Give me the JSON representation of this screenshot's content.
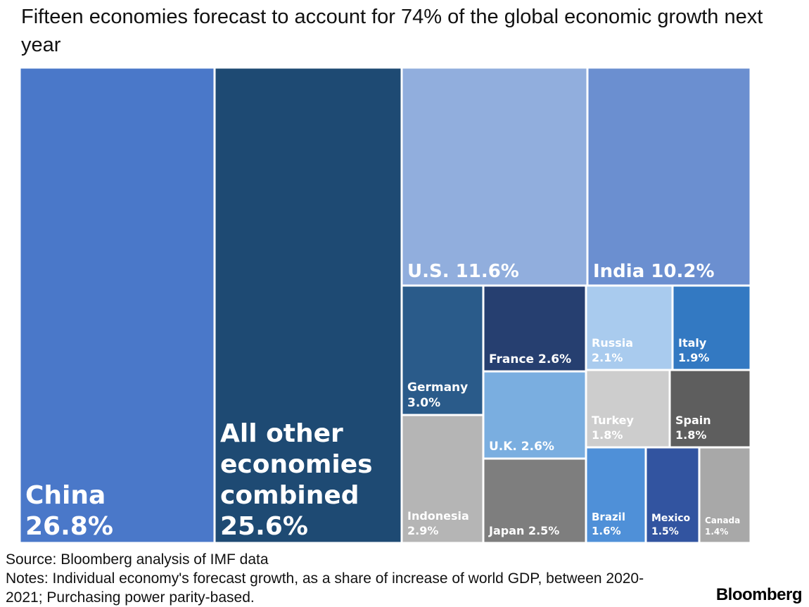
{
  "title": "Fifteen economies forecast to account for 74% of the global economic growth next year",
  "source": "Source: Bloomberg analysis of IMF data",
  "notes": "Notes: Individual economy's forecast growth, as a share of increase of world GDP, between 2020-2021; Purchasing power parity-based.",
  "brand": "Bloomberg",
  "chart_data": {
    "type": "treemap",
    "title": "Fifteen economies forecast to account for 74% of the global economic growth next year",
    "unit": "%",
    "items": [
      {
        "name": "China",
        "value": 26.8,
        "label_lines": [
          "China",
          "26.8%"
        ],
        "color": "#4a78c9"
      },
      {
        "name": "All other economies combined",
        "value": 25.6,
        "label_lines": [
          "All other",
          "economies",
          "combined",
          "25.6%"
        ],
        "color": "#1e4a73"
      },
      {
        "name": "U.S.",
        "value": 11.6,
        "label_lines": [
          "U.S. 11.6%"
        ],
        "color": "#91aedd"
      },
      {
        "name": "India",
        "value": 10.2,
        "label_lines": [
          "India 10.2%"
        ],
        "color": "#6b8fd0"
      },
      {
        "name": "Germany",
        "value": 3.0,
        "label_lines": [
          "Germany",
          "3.0%"
        ],
        "color": "#2a5b8a"
      },
      {
        "name": "France",
        "value": 2.6,
        "label_lines": [
          "France 2.6%"
        ],
        "color": "#263f70"
      },
      {
        "name": "Russia",
        "value": 2.1,
        "label_lines": [
          "Russia",
          "2.1%"
        ],
        "color": "#a9cbee"
      },
      {
        "name": "Italy",
        "value": 1.9,
        "label_lines": [
          "Italy",
          "1.9%"
        ],
        "color": "#3379c2"
      },
      {
        "name": "U.K.",
        "value": 2.6,
        "label_lines": [
          "U.K. 2.6%"
        ],
        "color": "#7aaee0"
      },
      {
        "name": "Turkey",
        "value": 1.8,
        "label_lines": [
          "Turkey",
          "1.8%"
        ],
        "color": "#cdcdcd"
      },
      {
        "name": "Spain",
        "value": 1.8,
        "label_lines": [
          "Spain",
          "1.8%"
        ],
        "color": "#5e5e5e"
      },
      {
        "name": "Indonesia",
        "value": 2.9,
        "label_lines": [
          "Indonesia",
          "2.9%"
        ],
        "color": "#b5b5b5"
      },
      {
        "name": "Japan",
        "value": 2.5,
        "label_lines": [
          "Japan 2.5%"
        ],
        "color": "#7e7e7e"
      },
      {
        "name": "Brazil",
        "value": 1.6,
        "label_lines": [
          "Brazil",
          "1.6%"
        ],
        "color": "#4f90d8"
      },
      {
        "name": "Mexico",
        "value": 1.5,
        "label_lines": [
          "Mexico",
          "1.5%"
        ],
        "color": "#3254a0"
      },
      {
        "name": "Canada",
        "value": 1.4,
        "label_lines": [
          "Canada",
          "1.4%"
        ],
        "color": "#a8a8a8"
      }
    ]
  }
}
